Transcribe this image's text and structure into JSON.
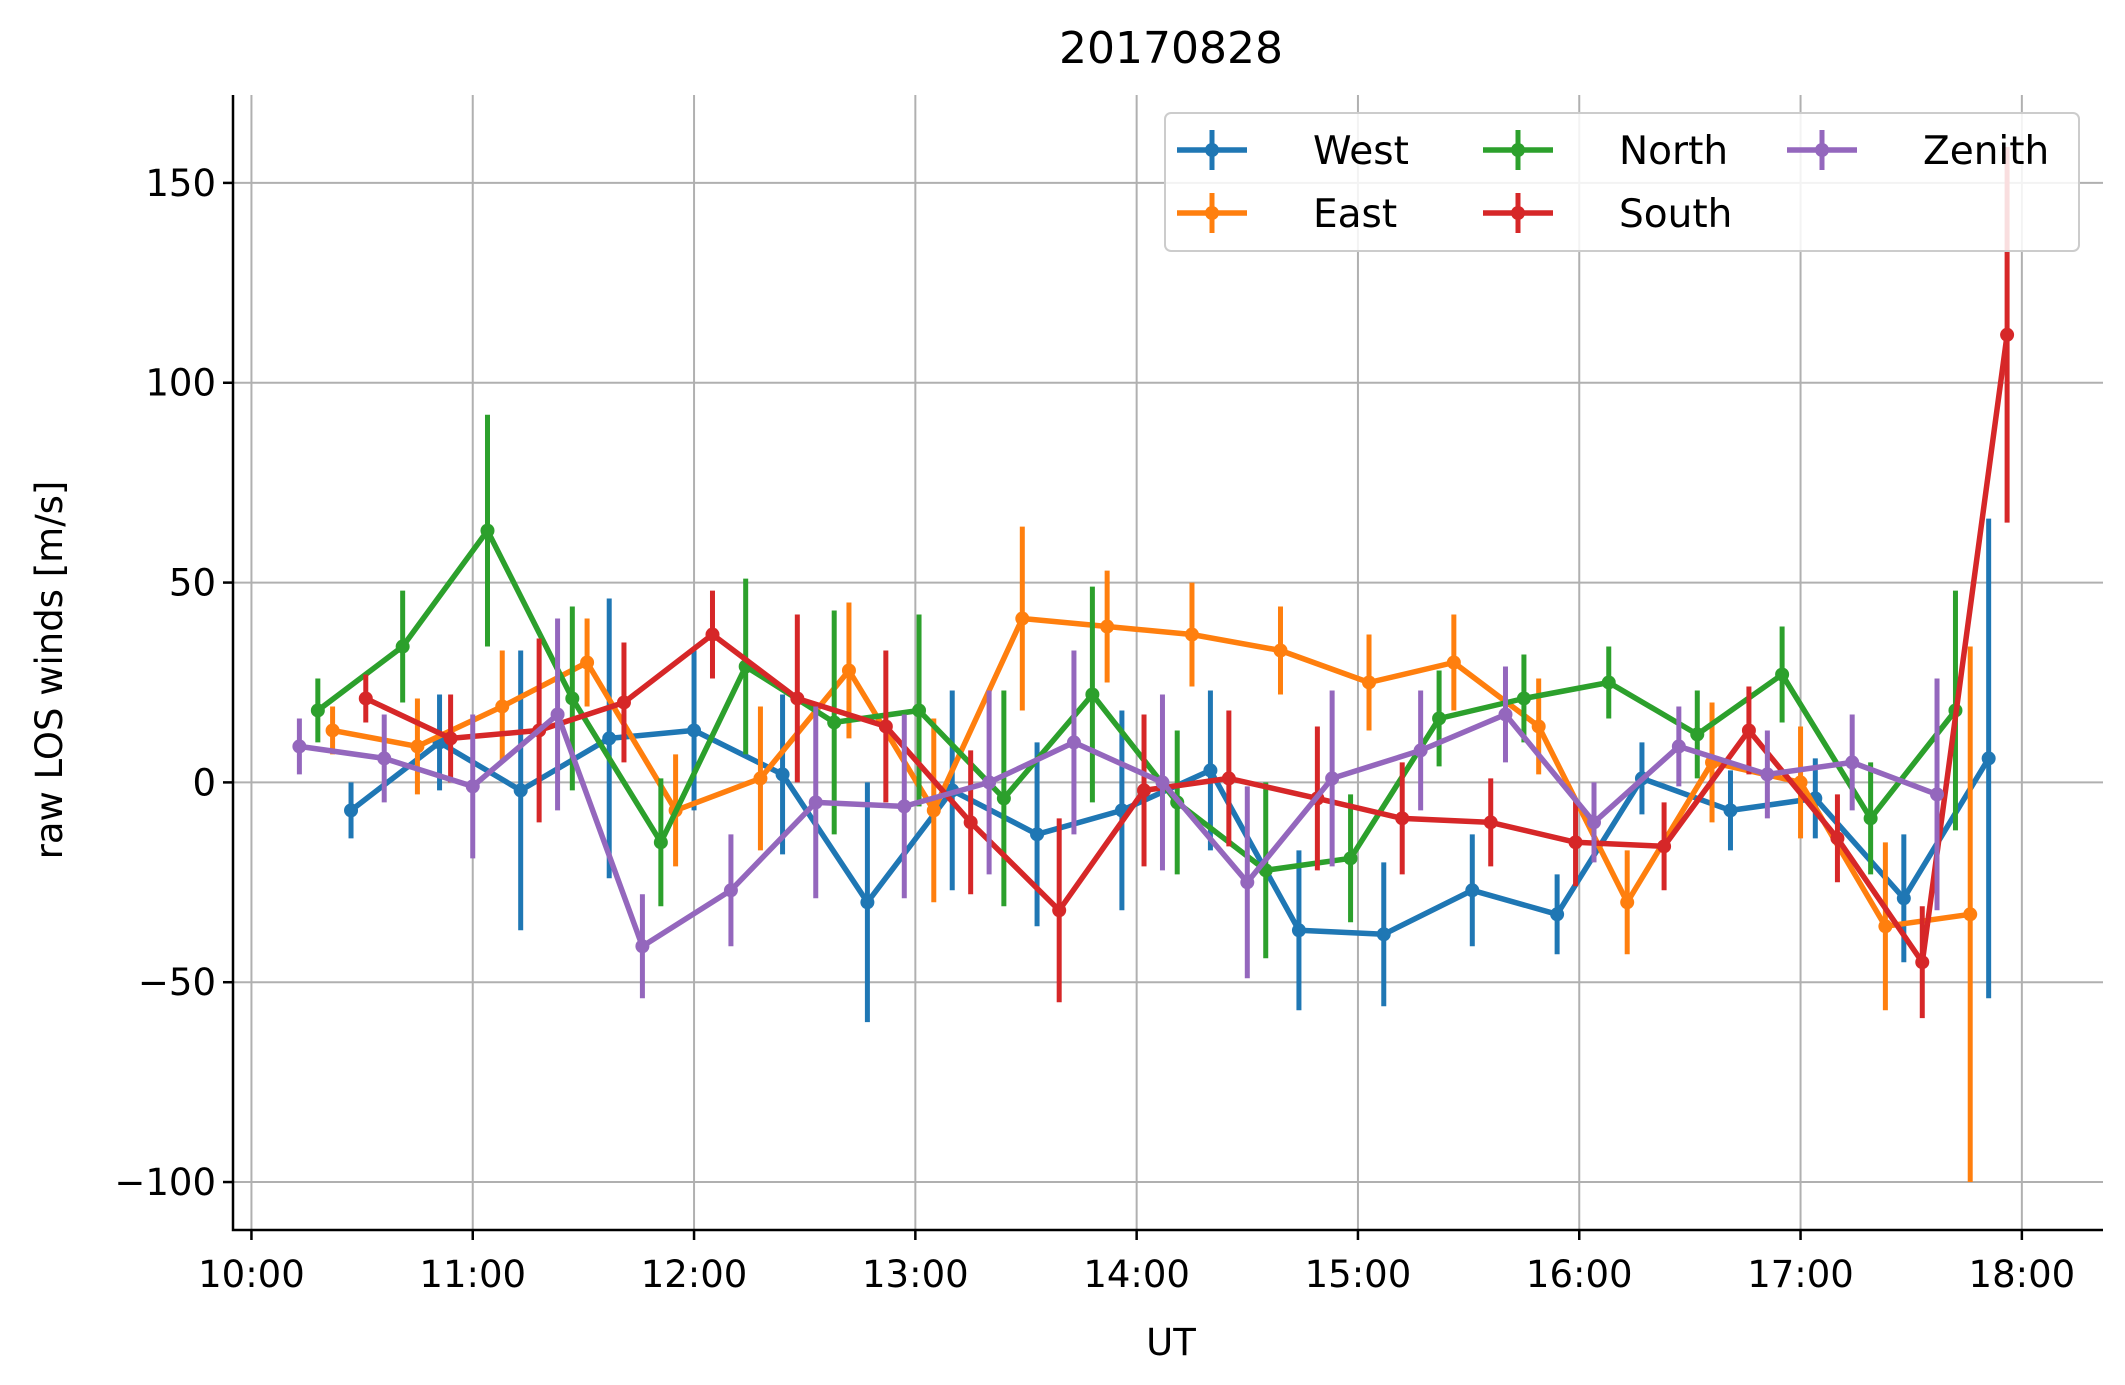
{
  "chart_data": {
    "type": "line",
    "title": "20170828",
    "xlabel": "UT",
    "ylabel": "raw LOS winds [m/s]",
    "xlim": [
      "09:55",
      "18:22"
    ],
    "ylim": [
      -112,
      172
    ],
    "xticks": [
      "10:00",
      "11:00",
      "12:00",
      "13:00",
      "14:00",
      "15:00",
      "16:00",
      "17:00",
      "18:00"
    ],
    "yticks": [
      -100,
      -50,
      0,
      50,
      100,
      150
    ],
    "ytick_labels": [
      "−100",
      "−50",
      "0",
      "50",
      "100",
      "150"
    ],
    "grid": true,
    "legend_position": "upper right",
    "legend_columns": 3,
    "series": [
      {
        "name": "West",
        "color": "#1f77b4",
        "points": [
          {
            "x": "10:27",
            "y": -7,
            "err": 7
          },
          {
            "x": "10:51",
            "y": 10,
            "err": 12
          },
          {
            "x": "11:13",
            "y": -2,
            "err": 35
          },
          {
            "x": "11:37",
            "y": 11,
            "err": 35
          },
          {
            "x": "12:00",
            "y": 13,
            "err": 20
          },
          {
            "x": "12:24",
            "y": 2,
            "err": 20
          },
          {
            "x": "12:47",
            "y": -30,
            "err": 30
          },
          {
            "x": "13:10",
            "y": -2,
            "err": 25
          },
          {
            "x": "13:33",
            "y": -13,
            "err": 23
          },
          {
            "x": "13:56",
            "y": -7,
            "err": 25
          },
          {
            "x": "14:20",
            "y": 3,
            "err": 20
          },
          {
            "x": "14:44",
            "y": -37,
            "err": 20
          },
          {
            "x": "15:07",
            "y": -38,
            "err": 18
          },
          {
            "x": "15:31",
            "y": -27,
            "err": 14
          },
          {
            "x": "15:54",
            "y": -33,
            "err": 10
          },
          {
            "x": "16:17",
            "y": 1,
            "err": 9
          },
          {
            "x": "16:41",
            "y": -7,
            "err": 10
          },
          {
            "x": "17:04",
            "y": -4,
            "err": 10
          },
          {
            "x": "17:28",
            "y": -29,
            "err": 16
          },
          {
            "x": "17:51",
            "y": 6,
            "err": 60
          }
        ]
      },
      {
        "name": "East",
        "color": "#ff7f0e",
        "points": [
          {
            "x": "10:22",
            "y": 13,
            "err": 6
          },
          {
            "x": "10:45",
            "y": 9,
            "err": 12
          },
          {
            "x": "11:08",
            "y": 19,
            "err": 14
          },
          {
            "x": "11:31",
            "y": 30,
            "err": 11
          },
          {
            "x": "11:55",
            "y": -7,
            "err": 14
          },
          {
            "x": "12:18",
            "y": 1,
            "err": 18
          },
          {
            "x": "12:42",
            "y": 28,
            "err": 17
          },
          {
            "x": "13:05",
            "y": -7,
            "err": 23
          },
          {
            "x": "13:29",
            "y": 41,
            "err": 23
          },
          {
            "x": "13:52",
            "y": 39,
            "err": 14
          },
          {
            "x": "14:15",
            "y": 37,
            "err": 13
          },
          {
            "x": "14:39",
            "y": 33,
            "err": 11
          },
          {
            "x": "15:03",
            "y": 25,
            "err": 12
          },
          {
            "x": "15:26",
            "y": 30,
            "err": 12
          },
          {
            "x": "15:49",
            "y": 14,
            "err": 12
          },
          {
            "x": "16:13",
            "y": -30,
            "err": 13
          },
          {
            "x": "16:36",
            "y": 5,
            "err": 15
          },
          {
            "x": "17:00",
            "y": 0,
            "err": 14
          },
          {
            "x": "17:23",
            "y": -36,
            "err": 21
          },
          {
            "x": "17:46",
            "y": -33,
            "err": 67
          }
        ]
      },
      {
        "name": "North",
        "color": "#2ca02c",
        "points": [
          {
            "x": "10:18",
            "y": 18,
            "err": 8
          },
          {
            "x": "10:41",
            "y": 34,
            "err": 14
          },
          {
            "x": "11:04",
            "y": 63,
            "err": 29
          },
          {
            "x": "11:27",
            "y": 21,
            "err": 23
          },
          {
            "x": "11:51",
            "y": -15,
            "err": 16
          },
          {
            "x": "12:14",
            "y": 29,
            "err": 22
          },
          {
            "x": "12:38",
            "y": 15,
            "err": 28
          },
          {
            "x": "13:01",
            "y": 18,
            "err": 24
          },
          {
            "x": "13:24",
            "y": -4,
            "err": 27
          },
          {
            "x": "13:48",
            "y": 22,
            "err": 27
          },
          {
            "x": "14:11",
            "y": -5,
            "err": 18
          },
          {
            "x": "14:35",
            "y": -22,
            "err": 22
          },
          {
            "x": "14:58",
            "y": -19,
            "err": 16
          },
          {
            "x": "15:22",
            "y": 16,
            "err": 12
          },
          {
            "x": "15:45",
            "y": 21,
            "err": 11
          },
          {
            "x": "16:08",
            "y": 25,
            "err": 9
          },
          {
            "x": "16:32",
            "y": 12,
            "err": 11
          },
          {
            "x": "16:55",
            "y": 27,
            "err": 12
          },
          {
            "x": "17:19",
            "y": -9,
            "err": 14
          },
          {
            "x": "17:42",
            "y": 18,
            "err": 30
          }
        ]
      },
      {
        "name": "South",
        "color": "#d62728",
        "points": [
          {
            "x": "10:31",
            "y": 21,
            "err": 6
          },
          {
            "x": "10:54",
            "y": 11,
            "err": 11
          },
          {
            "x": "11:18",
            "y": 13,
            "err": 23
          },
          {
            "x": "11:41",
            "y": 20,
            "err": 15
          },
          {
            "x": "12:05",
            "y": 37,
            "err": 11
          },
          {
            "x": "12:28",
            "y": 21,
            "err": 21
          },
          {
            "x": "12:52",
            "y": 14,
            "err": 19
          },
          {
            "x": "13:15",
            "y": -10,
            "err": 18
          },
          {
            "x": "13:39",
            "y": -32,
            "err": 23
          },
          {
            "x": "14:02",
            "y": -2,
            "err": 19
          },
          {
            "x": "14:25",
            "y": 1,
            "err": 17
          },
          {
            "x": "14:49",
            "y": -4,
            "err": 18
          },
          {
            "x": "15:12",
            "y": -9,
            "err": 14
          },
          {
            "x": "15:36",
            "y": -10,
            "err": 11
          },
          {
            "x": "15:59",
            "y": -15,
            "err": 11
          },
          {
            "x": "16:23",
            "y": -16,
            "err": 11
          },
          {
            "x": "16:46",
            "y": 13,
            "err": 11
          },
          {
            "x": "17:10",
            "y": -14,
            "err": 11
          },
          {
            "x": "17:33",
            "y": -45,
            "err": 14
          },
          {
            "x": "17:56",
            "y": 112,
            "err": 47
          }
        ]
      },
      {
        "name": "Zenith",
        "color": "#9467bd",
        "points": [
          {
            "x": "10:13",
            "y": 9,
            "err": 7
          },
          {
            "x": "10:36",
            "y": 6,
            "err": 11
          },
          {
            "x": "11:00",
            "y": -1,
            "err": 18
          },
          {
            "x": "11:23",
            "y": 17,
            "err": 24
          },
          {
            "x": "11:46",
            "y": -41,
            "err": 13
          },
          {
            "x": "12:10",
            "y": -27,
            "err": 14
          },
          {
            "x": "12:33",
            "y": -5,
            "err": 24
          },
          {
            "x": "12:57",
            "y": -6,
            "err": 23
          },
          {
            "x": "13:20",
            "y": 0,
            "err": 23
          },
          {
            "x": "13:43",
            "y": 10,
            "err": 23
          },
          {
            "x": "14:07",
            "y": 0,
            "err": 22
          },
          {
            "x": "14:30",
            "y": -25,
            "err": 24
          },
          {
            "x": "14:53",
            "y": 1,
            "err": 22
          },
          {
            "x": "15:17",
            "y": 8,
            "err": 15
          },
          {
            "x": "15:40",
            "y": 17,
            "err": 12
          },
          {
            "x": "16:04",
            "y": -10,
            "err": 10
          },
          {
            "x": "16:27",
            "y": 9,
            "err": 10
          },
          {
            "x": "16:51",
            "y": 2,
            "err": 11
          },
          {
            "x": "17:14",
            "y": 5,
            "err": 12
          },
          {
            "x": "17:37",
            "y": -3,
            "err": 29
          }
        ]
      }
    ]
  }
}
